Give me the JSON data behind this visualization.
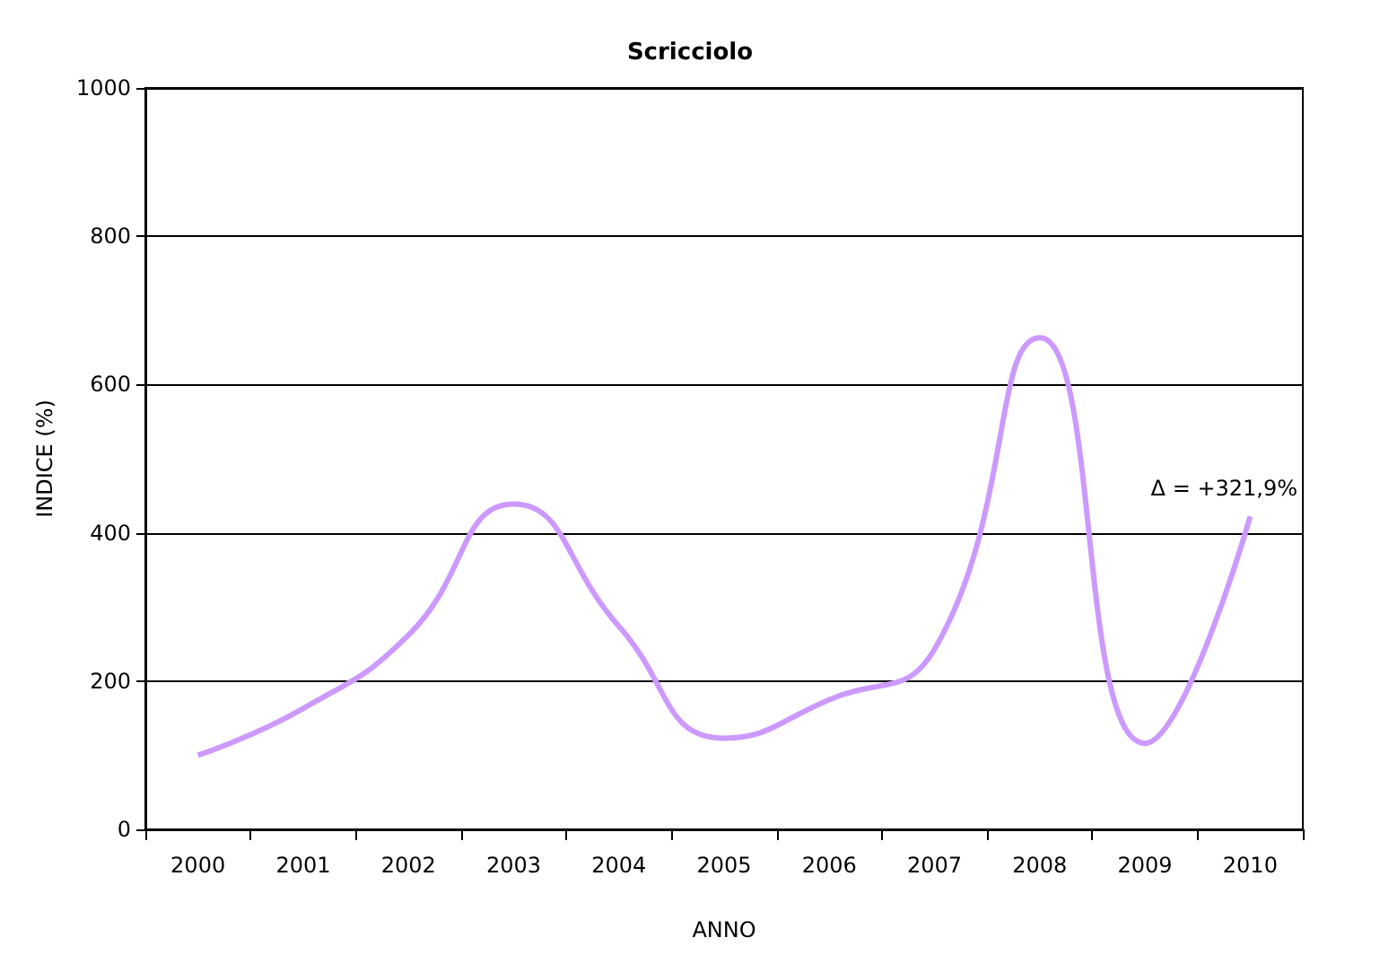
{
  "chart_data": {
    "type": "line",
    "title": "Scricciolo",
    "xlabel": "ANNO",
    "ylabel": "INDICE (%)",
    "categories": [
      "2000",
      "2001",
      "2002",
      "2003",
      "2004",
      "2005",
      "2006",
      "2007",
      "2008",
      "2009",
      "2010"
    ],
    "series": [
      {
        "color": "#cc99ff",
        "values": [
          100,
          163,
          262,
          439,
          274,
          123,
          175,
          243,
          663,
          116,
          422
        ]
      }
    ],
    "ylim": [
      0,
      1000
    ],
    "yticks": [
      0,
      200,
      400,
      600,
      800,
      {
        "value": 1000,
        "label": "1000"
      }
    ],
    "grid": "y",
    "marker": "none",
    "line_style": "solid",
    "annotations": [
      "Δ = +321,9%"
    ]
  }
}
